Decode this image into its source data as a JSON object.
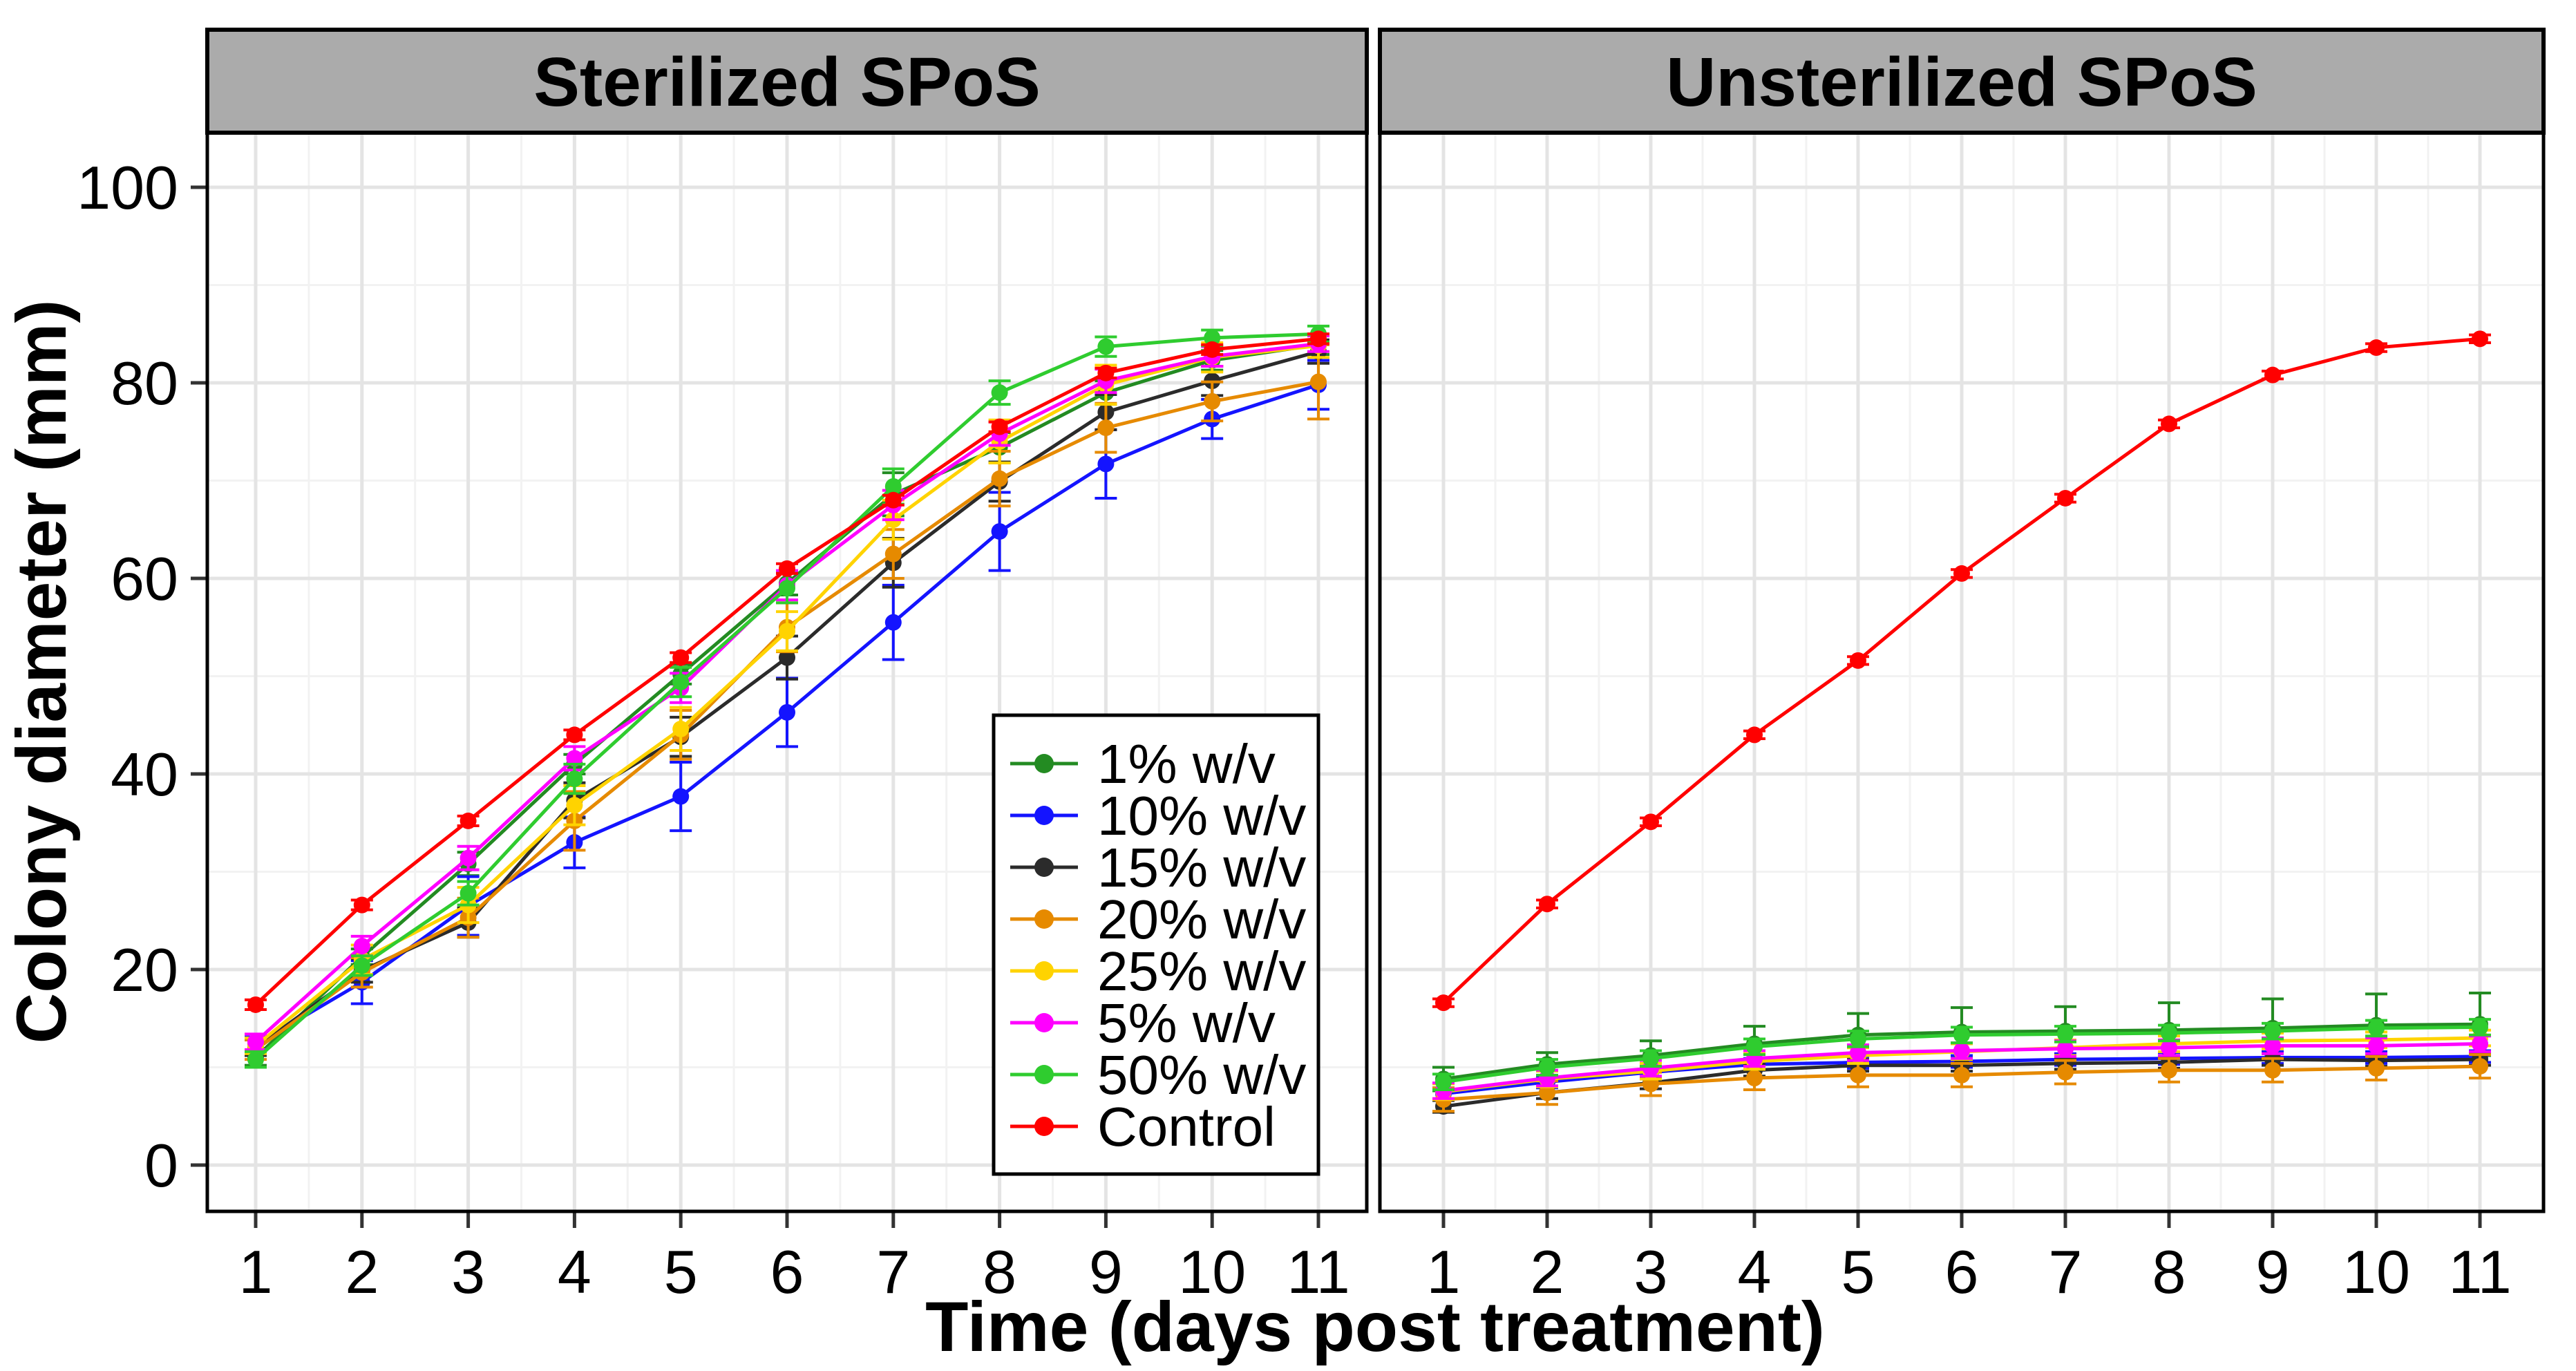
{
  "figure": {
    "y_axis": {
      "title": "Colony diameter (mm)",
      "ticks": [
        0,
        20,
        40,
        60,
        80,
        100
      ],
      "tick_labels": [
        "0",
        "20",
        "40",
        "60",
        "80",
        "100"
      ],
      "range": [
        0,
        100
      ]
    },
    "x_axis": {
      "title": "Time (days post treatment)",
      "ticks": [
        1,
        2,
        3,
        4,
        5,
        6,
        7,
        8,
        9,
        10,
        11
      ],
      "tick_labels": [
        "1",
        "2",
        "3",
        "4",
        "5",
        "6",
        "7",
        "8",
        "9",
        "10",
        "11"
      ]
    },
    "panels": [
      {
        "title": "Sterilized SPoS"
      },
      {
        "title": "Unsterilized  SPoS"
      }
    ],
    "colors": {
      "strip_fill": "#ABABAB",
      "panel_border": "#000000",
      "grid_major": "#E4E4E4",
      "grid_minor": "#F2F2F2",
      "series": {
        "1% w/v": "#238B22",
        "10% w/v": "#1414FF",
        "15% w/v": "#2B2B2B",
        "20% w/v": "#E68A00",
        "25% w/v": "#FFD300",
        "5% w/v": "#FF00FF",
        "50% w/v": "#2FCC2F",
        "Control": "#FF0000"
      }
    },
    "legend": {
      "position": "inside left panel, lower right",
      "entries": [
        {
          "label": "1% w/v",
          "color": "#238B22"
        },
        {
          "label": "10% w/v",
          "color": "#1414FF"
        },
        {
          "label": "15% w/v",
          "color": "#2B2B2B"
        },
        {
          "label": "20% w/v",
          "color": "#E68A00"
        },
        {
          "label": "25% w/v",
          "color": "#FFD300"
        },
        {
          "label": "5% w/v",
          "color": "#FF00FF"
        },
        {
          "label": "50% w/v",
          "color": "#2FCC2F"
        },
        {
          "label": "Control",
          "color": "#FF0000"
        }
      ]
    }
  },
  "chart_data": [
    {
      "type": "line",
      "title": "Sterilized SPoS",
      "xlabel": "Time (days post treatment)",
      "ylabel": "Colony diameter (mm)",
      "x": [
        1,
        2,
        3,
        4,
        5,
        6,
        7,
        8,
        9,
        10,
        11
      ],
      "ylim": [
        0,
        100
      ],
      "grid": true,
      "series": [
        {
          "name": "1% w/v",
          "color": "#238B22",
          "values": [
            11.0,
            21.3,
            30.8,
            41.0,
            50.2,
            59.5,
            68.6,
            73.4,
            79.0,
            82.3,
            83.9
          ],
          "errors": [
            0.8,
            0.8,
            1.2,
            1.0,
            1.0,
            1.2,
            2.2,
            1.5,
            1.2,
            1.0,
            1.0
          ]
        },
        {
          "name": "10% w/v",
          "color": "#1414FF",
          "values": [
            12.3,
            18.7,
            26.5,
            33.0,
            37.7,
            46.3,
            55.5,
            64.8,
            71.7,
            76.3,
            79.8
          ],
          "errors": [
            0.8,
            2.2,
            3.0,
            2.6,
            3.5,
            3.5,
            3.8,
            4.0,
            3.5,
            2.0,
            2.5
          ]
        },
        {
          "name": "15% w/v",
          "color": "#2B2B2B",
          "values": [
            12.0,
            19.9,
            24.8,
            37.3,
            43.8,
            51.9,
            61.6,
            69.9,
            77.0,
            80.2,
            83.2
          ],
          "errors": [
            0.8,
            1.2,
            1.5,
            1.8,
            2.0,
            2.2,
            2.5,
            2.0,
            1.8,
            1.5,
            1.2
          ]
        },
        {
          "name": "20% w/v",
          "color": "#E68A00",
          "values": [
            11.8,
            19.7,
            25.3,
            35.2,
            44.0,
            55.0,
            62.5,
            70.2,
            75.4,
            78.1,
            80.1
          ],
          "errors": [
            1.0,
            1.5,
            2.0,
            3.0,
            2.5,
            2.5,
            2.5,
            2.8,
            2.5,
            2.0,
            3.8
          ]
        },
        {
          "name": "25% w/v",
          "color": "#FFD300",
          "values": [
            12.2,
            21.0,
            26.6,
            36.8,
            44.6,
            54.6,
            66.0,
            74.0,
            79.8,
            82.6,
            83.8
          ],
          "errors": [
            0.8,
            1.5,
            1.8,
            2.0,
            2.2,
            2.0,
            2.0,
            2.2,
            2.0,
            1.5,
            1.2
          ]
        },
        {
          "name": "5% w/v",
          "color": "#FF00FF",
          "values": [
            12.6,
            22.4,
            31.4,
            41.6,
            48.8,
            59.3,
            67.5,
            74.8,
            80.2,
            82.7,
            84.0
          ],
          "errors": [
            0.8,
            1.0,
            1.2,
            1.2,
            1.5,
            1.5,
            1.5,
            1.2,
            1.2,
            1.0,
            0.8
          ]
        },
        {
          "name": "50% w/v",
          "color": "#2FCC2F",
          "values": [
            10.8,
            20.4,
            27.8,
            39.5,
            49.4,
            59.0,
            69.4,
            79.0,
            83.7,
            84.6,
            85.0
          ],
          "errors": [
            0.8,
            1.0,
            1.2,
            1.5,
            1.5,
            1.5,
            1.8,
            1.2,
            1.0,
            0.8,
            0.8
          ]
        },
        {
          "name": "Control",
          "color": "#FF0000",
          "values": [
            16.4,
            26.6,
            35.2,
            44.0,
            51.9,
            61.0,
            68.0,
            75.5,
            81.0,
            83.4,
            84.5
          ],
          "errors": [
            0.5,
            0.5,
            0.5,
            0.5,
            0.5,
            0.5,
            0.5,
            0.5,
            0.5,
            0.5,
            0.5
          ]
        }
      ]
    },
    {
      "type": "line",
      "title": "Unsterilized  SPoS",
      "xlabel": "Time (days post treatment)",
      "ylabel": "Colony diameter (mm)",
      "x": [
        1,
        2,
        3,
        4,
        5,
        6,
        7,
        8,
        9,
        10,
        11
      ],
      "ylim": [
        0,
        100
      ],
      "grid": true,
      "series": [
        {
          "name": "1% w/v",
          "color": "#238B22",
          "values": [
            8.8,
            10.3,
            11.2,
            12.4,
            13.3,
            13.6,
            13.7,
            13.8,
            14.0,
            14.3,
            14.4
          ],
          "errors": [
            1.2,
            1.2,
            1.5,
            1.8,
            2.2,
            2.5,
            2.5,
            2.8,
            3.0,
            3.2,
            3.2
          ]
        },
        {
          "name": "10% w/v",
          "color": "#1414FF",
          "values": [
            7.3,
            8.5,
            9.5,
            10.3,
            10.5,
            10.6,
            10.8,
            10.9,
            11.0,
            11.0,
            11.1
          ],
          "errors": [
            0.6,
            0.6,
            0.6,
            0.6,
            0.6,
            0.6,
            0.6,
            0.6,
            0.6,
            0.6,
            0.6
          ]
        },
        {
          "name": "15% w/v",
          "color": "#2B2B2B",
          "values": [
            6.0,
            7.4,
            8.4,
            9.7,
            10.2,
            10.2,
            10.4,
            10.5,
            10.8,
            10.7,
            10.8
          ],
          "errors": [
            0.6,
            0.6,
            0.6,
            0.6,
            0.6,
            0.6,
            0.6,
            0.6,
            0.6,
            0.6,
            0.6
          ]
        },
        {
          "name": "20% w/v",
          "color": "#E68A00",
          "values": [
            6.7,
            7.4,
            8.3,
            8.9,
            9.2,
            9.2,
            9.5,
            9.7,
            9.7,
            9.9,
            10.1
          ],
          "errors": [
            1.2,
            1.2,
            1.2,
            1.2,
            1.2,
            1.2,
            1.2,
            1.2,
            1.2,
            1.2,
            1.2
          ]
        },
        {
          "name": "25% w/v",
          "color": "#FFD300",
          "values": [
            7.5,
            8.8,
            9.6,
            10.6,
            11.2,
            11.6,
            12.0,
            12.4,
            12.7,
            12.8,
            13.0
          ],
          "errors": [
            0.8,
            0.8,
            0.8,
            0.8,
            0.8,
            0.8,
            0.8,
            0.8,
            0.8,
            0.8,
            0.8
          ]
        },
        {
          "name": "5% w/v",
          "color": "#FF00FF",
          "values": [
            7.6,
            8.9,
            9.9,
            10.9,
            11.5,
            11.7,
            11.9,
            12.0,
            12.2,
            12.2,
            12.4
          ],
          "errors": [
            0.8,
            0.8,
            0.8,
            0.8,
            0.8,
            0.8,
            0.8,
            0.8,
            0.8,
            0.8,
            0.8
          ]
        },
        {
          "name": "50% w/v",
          "color": "#2FCC2F",
          "values": [
            8.5,
            10.0,
            10.9,
            12.1,
            12.9,
            13.3,
            13.4,
            13.5,
            13.7,
            14.0,
            14.1
          ],
          "errors": [
            0.8,
            0.8,
            0.8,
            0.8,
            0.8,
            0.8,
            0.8,
            0.8,
            0.8,
            0.8,
            0.8
          ]
        },
        {
          "name": "Control",
          "color": "#FF0000",
          "values": [
            16.6,
            26.7,
            35.1,
            44.0,
            51.6,
            60.5,
            68.2,
            75.8,
            80.8,
            83.6,
            84.5
          ],
          "errors": [
            0.4,
            0.4,
            0.4,
            0.4,
            0.4,
            0.4,
            0.4,
            0.4,
            0.4,
            0.4,
            0.4
          ]
        }
      ]
    }
  ]
}
